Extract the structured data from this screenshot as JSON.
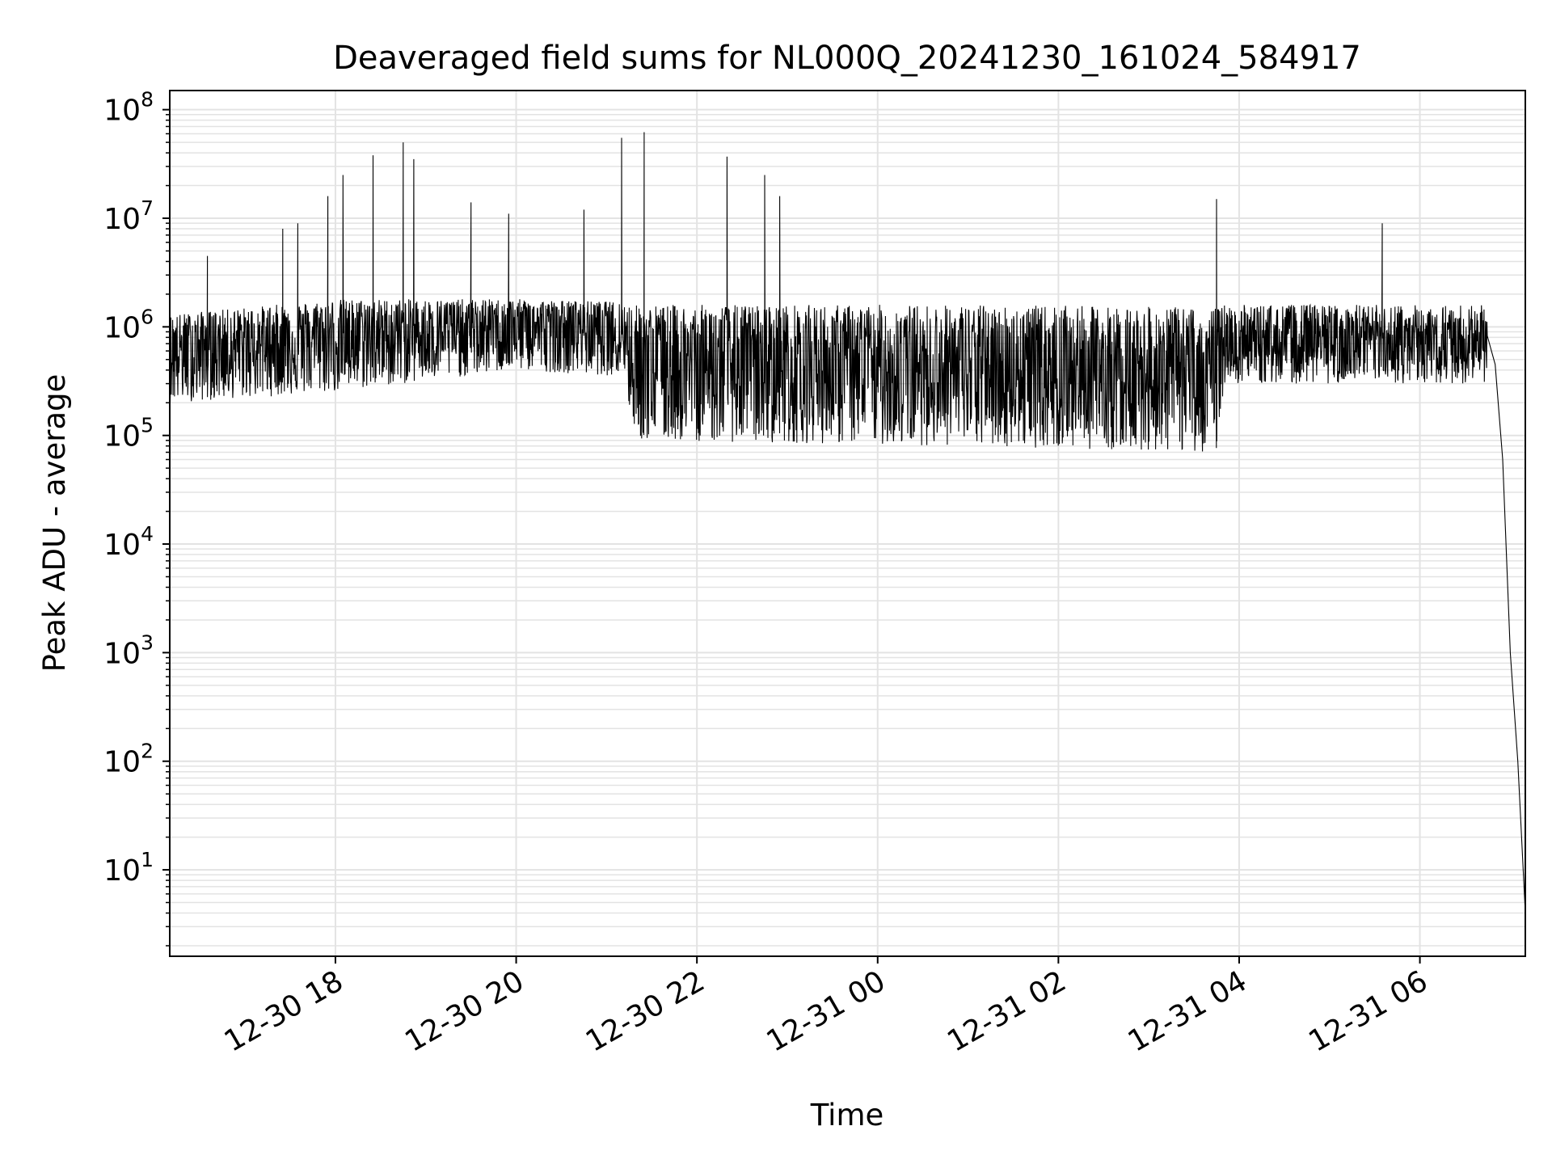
{
  "chart_data": {
    "type": "line",
    "title": "Deaveraged field sums for NL000Q_20241230_161024_584917",
    "xlabel": "Time",
    "ylabel": "Peak ADU - average",
    "yscale": "log",
    "ylim": [
      1.6,
      150000000
    ],
    "xlim": [
      "2024-12-30 16:10",
      "2024-12-31 07:10"
    ],
    "grid": true,
    "line_color": "#000000",
    "grid_color": "#e3e3e3",
    "x_ticks": [
      {
        "t": "2024-12-30 18:00",
        "label": "12-30 18"
      },
      {
        "t": "2024-12-30 20:00",
        "label": "12-30 20"
      },
      {
        "t": "2024-12-30 22:00",
        "label": "12-30 22"
      },
      {
        "t": "2024-12-31 00:00",
        "label": "12-31 00"
      },
      {
        "t": "2024-12-31 02:00",
        "label": "12-31 02"
      },
      {
        "t": "2024-12-31 04:00",
        "label": "12-31 04"
      },
      {
        "t": "2024-12-31 06:00",
        "label": "12-31 06"
      }
    ],
    "y_ticks": [
      {
        "value": 10,
        "base": "10",
        "exp": "1"
      },
      {
        "value": 100,
        "base": "10",
        "exp": "2"
      },
      {
        "value": 1000,
        "base": "10",
        "exp": "3"
      },
      {
        "value": 10000,
        "base": "10",
        "exp": "4"
      },
      {
        "value": 100000,
        "base": "10",
        "exp": "5"
      },
      {
        "value": 1000000,
        "base": "10",
        "exp": "6"
      },
      {
        "value": 10000000,
        "base": "10",
        "exp": "7"
      },
      {
        "value": 100000000,
        "base": "10",
        "exp": "8"
      }
    ],
    "series": [
      {
        "description": "Dense high-cadence trace of peak ADU minus average over time; values below are approximate envelope readings",
        "median_band": [
          {
            "t": "2024-12-30 16:10",
            "low": 200000,
            "mid": 600000,
            "high": 1300000
          },
          {
            "t": "2024-12-30 18:00",
            "low": 250000,
            "mid": 800000,
            "high": 1800000
          },
          {
            "t": "2024-12-30 20:00",
            "low": 400000,
            "mid": 1000000,
            "high": 1800000
          },
          {
            "t": "2024-12-30 21:10",
            "low": 350000,
            "mid": 1000000,
            "high": 1700000
          },
          {
            "t": "2024-12-30 21:20",
            "low": 90000,
            "mid": 450000,
            "high": 1600000
          },
          {
            "t": "2024-12-31 01:00",
            "low": 80000,
            "mid": 400000,
            "high": 1600000
          },
          {
            "t": "2024-12-31 03:45",
            "low": 70000,
            "mid": 350000,
            "high": 1500000
          },
          {
            "t": "2024-12-31 03:50",
            "low": 300000,
            "mid": 700000,
            "high": 1600000
          },
          {
            "t": "2024-12-31 06:45",
            "low": 300000,
            "mid": 700000,
            "high": 1600000
          }
        ],
        "spikes": [
          {
            "t": "2024-12-30 16:35",
            "y": 4500000
          },
          {
            "t": "2024-12-30 17:25",
            "y": 8000000
          },
          {
            "t": "2024-12-30 17:35",
            "y": 9000000
          },
          {
            "t": "2024-12-30 17:55",
            "y": 16000000
          },
          {
            "t": "2024-12-30 18:05",
            "y": 25000000
          },
          {
            "t": "2024-12-30 18:25",
            "y": 38000000
          },
          {
            "t": "2024-12-30 18:45",
            "y": 50000000
          },
          {
            "t": "2024-12-30 18:52",
            "y": 35000000
          },
          {
            "t": "2024-12-30 19:30",
            "y": 14000000
          },
          {
            "t": "2024-12-30 19:55",
            "y": 11000000
          },
          {
            "t": "2024-12-30 20:45",
            "y": 12000000
          },
          {
            "t": "2024-12-30 21:10",
            "y": 55000000
          },
          {
            "t": "2024-12-30 21:25",
            "y": 62000000
          },
          {
            "t": "2024-12-30 22:20",
            "y": 37000000
          },
          {
            "t": "2024-12-30 22:45",
            "y": 25000000
          },
          {
            "t": "2024-12-30 22:55",
            "y": 16000000
          },
          {
            "t": "2024-12-31 03:45",
            "y": 15000000
          },
          {
            "t": "2024-12-31 05:35",
            "y": 9000000
          }
        ],
        "tail": [
          {
            "t": "2024-12-31 06:50",
            "y": 450000
          },
          {
            "t": "2024-12-31 06:55",
            "y": 60000
          },
          {
            "t": "2024-12-31 07:00",
            "y": 1000
          },
          {
            "t": "2024-12-31 07:05",
            "y": 100
          },
          {
            "t": "2024-12-31 07:10",
            "y": 4
          }
        ]
      }
    ]
  }
}
